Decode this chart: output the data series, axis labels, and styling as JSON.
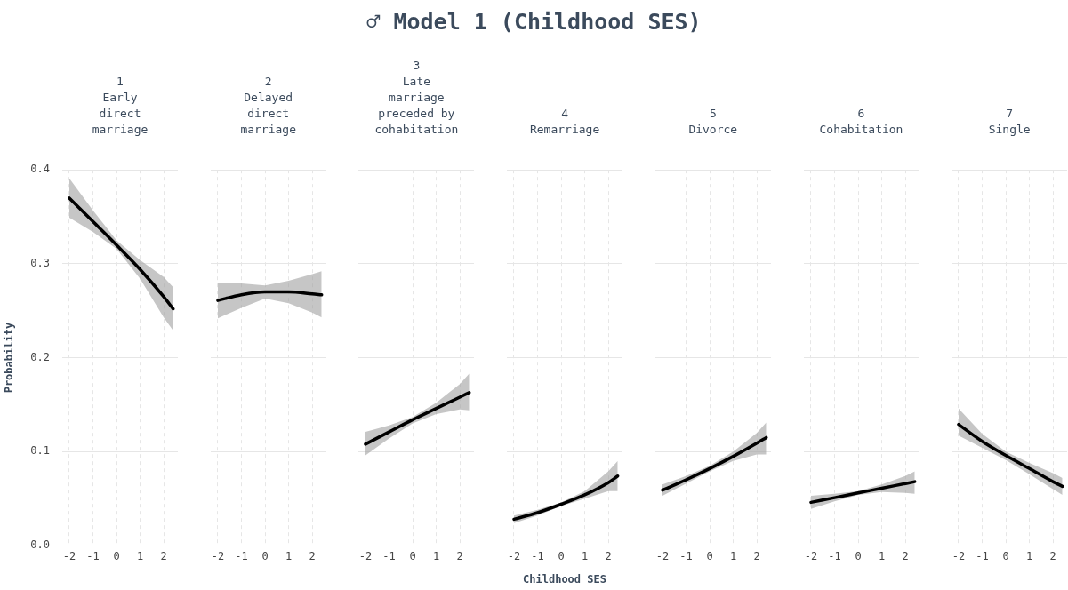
{
  "chart_data": [
    {
      "type": "other",
      "title": "♂ Model 1 (Childhood SES)"
    },
    {
      "type": "line",
      "title": "1\nEarly\ndirect\nmarriage",
      "ylabel": "Probability",
      "xlim": [
        -2.3,
        2.6
      ],
      "xticks": [
        -2,
        -1,
        0,
        1,
        2
      ],
      "ylim": [
        0,
        0.4
      ],
      "yticks": [
        {
          "value": 0,
          "label": "0.0"
        },
        0.1,
        0.2,
        0.3,
        0.4
      ],
      "grid": true,
      "series": [
        {
          "color": "#000000",
          "x": [
            -2,
            -1,
            0,
            1,
            2,
            2.4
          ],
          "values": [
            0.37,
            0.345,
            0.32,
            0.294,
            0.265,
            0.252
          ],
          "lower": [
            0.349,
            0.334,
            0.316,
            0.284,
            0.243,
            0.229
          ],
          "upper": [
            0.391,
            0.357,
            0.325,
            0.304,
            0.286,
            0.275
          ]
        }
      ]
    },
    {
      "type": "line",
      "title": "2\nDelayed\ndirect\nmarriage",
      "xlim": [
        -2.3,
        2.6
      ],
      "xticks": [
        -2,
        -1,
        0,
        1,
        2
      ],
      "ylim": [
        0,
        0.4
      ],
      "yticks": [
        0,
        0.1,
        0.2,
        0.3,
        0.4
      ],
      "grid": true,
      "tick_labels": "x",
      "series": [
        {
          "color": "#000000",
          "x": [
            -2,
            -1,
            0,
            1,
            2,
            2.4
          ],
          "values": [
            0.261,
            0.267,
            0.27,
            0.27,
            0.268,
            0.267
          ],
          "lower": [
            0.242,
            0.253,
            0.263,
            0.258,
            0.248,
            0.243
          ],
          "upper": [
            0.279,
            0.279,
            0.277,
            0.282,
            0.289,
            0.292
          ]
        }
      ]
    },
    {
      "type": "line",
      "title": "3\nLate\nmarriage\npreceded by\ncohabitation",
      "xlim": [
        -2.3,
        2.6
      ],
      "xticks": [
        -2,
        -1,
        0,
        1,
        2
      ],
      "ylim": [
        0,
        0.4
      ],
      "yticks": [
        0,
        0.1,
        0.2,
        0.3,
        0.4
      ],
      "grid": true,
      "tick_labels": "x",
      "series": [
        {
          "color": "#000000",
          "x": [
            -2,
            -1,
            0,
            1,
            2,
            2.4
          ],
          "values": [
            0.108,
            0.121,
            0.134,
            0.146,
            0.158,
            0.163
          ],
          "lower": [
            0.096,
            0.114,
            0.13,
            0.14,
            0.145,
            0.144
          ],
          "upper": [
            0.121,
            0.128,
            0.137,
            0.152,
            0.172,
            0.183
          ]
        }
      ]
    },
    {
      "type": "line",
      "title": "4\nRemarriage",
      "xlabel": "Childhood SES",
      "xlim": [
        -2.3,
        2.6
      ],
      "xticks": [
        -2,
        -1,
        0,
        1,
        2
      ],
      "ylim": [
        0,
        0.4
      ],
      "yticks": [
        0,
        0.1,
        0.2,
        0.3,
        0.4
      ],
      "grid": true,
      "tick_labels": "x",
      "series": [
        {
          "color": "#000000",
          "x": [
            -2,
            -1,
            0,
            1,
            2,
            2.4
          ],
          "values": [
            0.028,
            0.035,
            0.044,
            0.054,
            0.067,
            0.074
          ],
          "lower": [
            0.024,
            0.032,
            0.042,
            0.05,
            0.058,
            0.058
          ],
          "upper": [
            0.032,
            0.038,
            0.046,
            0.058,
            0.079,
            0.09
          ]
        }
      ]
    },
    {
      "type": "line",
      "title": "5\nDivorce",
      "xlim": [
        -2.3,
        2.6
      ],
      "xticks": [
        -2,
        -1,
        0,
        1,
        2
      ],
      "ylim": [
        0,
        0.4
      ],
      "yticks": [
        0,
        0.1,
        0.2,
        0.3,
        0.4
      ],
      "grid": true,
      "tick_labels": "x",
      "series": [
        {
          "color": "#000000",
          "x": [
            -2,
            -1,
            0,
            1,
            2,
            2.4
          ],
          "values": [
            0.059,
            0.07,
            0.082,
            0.095,
            0.109,
            0.115
          ],
          "lower": [
            0.053,
            0.066,
            0.079,
            0.09,
            0.097,
            0.097
          ],
          "upper": [
            0.065,
            0.074,
            0.085,
            0.1,
            0.12,
            0.131
          ]
        }
      ]
    },
    {
      "type": "line",
      "title": "6\nCohabitation",
      "xlim": [
        -2.3,
        2.6
      ],
      "xticks": [
        -2,
        -1,
        0,
        1,
        2
      ],
      "ylim": [
        0,
        0.4
      ],
      "yticks": [
        0,
        0.1,
        0.2,
        0.3,
        0.4
      ],
      "grid": true,
      "tick_labels": "x",
      "series": [
        {
          "color": "#000000",
          "x": [
            -2,
            -1,
            0,
            1,
            2,
            2.4
          ],
          "values": [
            0.046,
            0.051,
            0.056,
            0.061,
            0.066,
            0.068
          ],
          "lower": [
            0.039,
            0.047,
            0.054,
            0.057,
            0.056,
            0.055
          ],
          "upper": [
            0.053,
            0.055,
            0.058,
            0.065,
            0.074,
            0.079
          ]
        }
      ]
    },
    {
      "type": "line",
      "title": "7\nSingle",
      "xlim": [
        -2.3,
        2.6
      ],
      "xticks": [
        -2,
        -1,
        0,
        1,
        2
      ],
      "ylim": [
        0,
        0.4
      ],
      "yticks": [
        0,
        0.1,
        0.2,
        0.3,
        0.4
      ],
      "grid": true,
      "tick_labels": "x",
      "series": [
        {
          "color": "#000000",
          "x": [
            -2,
            -1,
            0,
            1,
            2,
            2.4
          ],
          "values": [
            0.129,
            0.111,
            0.096,
            0.082,
            0.068,
            0.063
          ],
          "lower": [
            0.117,
            0.104,
            0.091,
            0.076,
            0.06,
            0.054
          ],
          "upper": [
            0.146,
            0.119,
            0.1,
            0.088,
            0.077,
            0.072
          ]
        }
      ]
    }
  ]
}
